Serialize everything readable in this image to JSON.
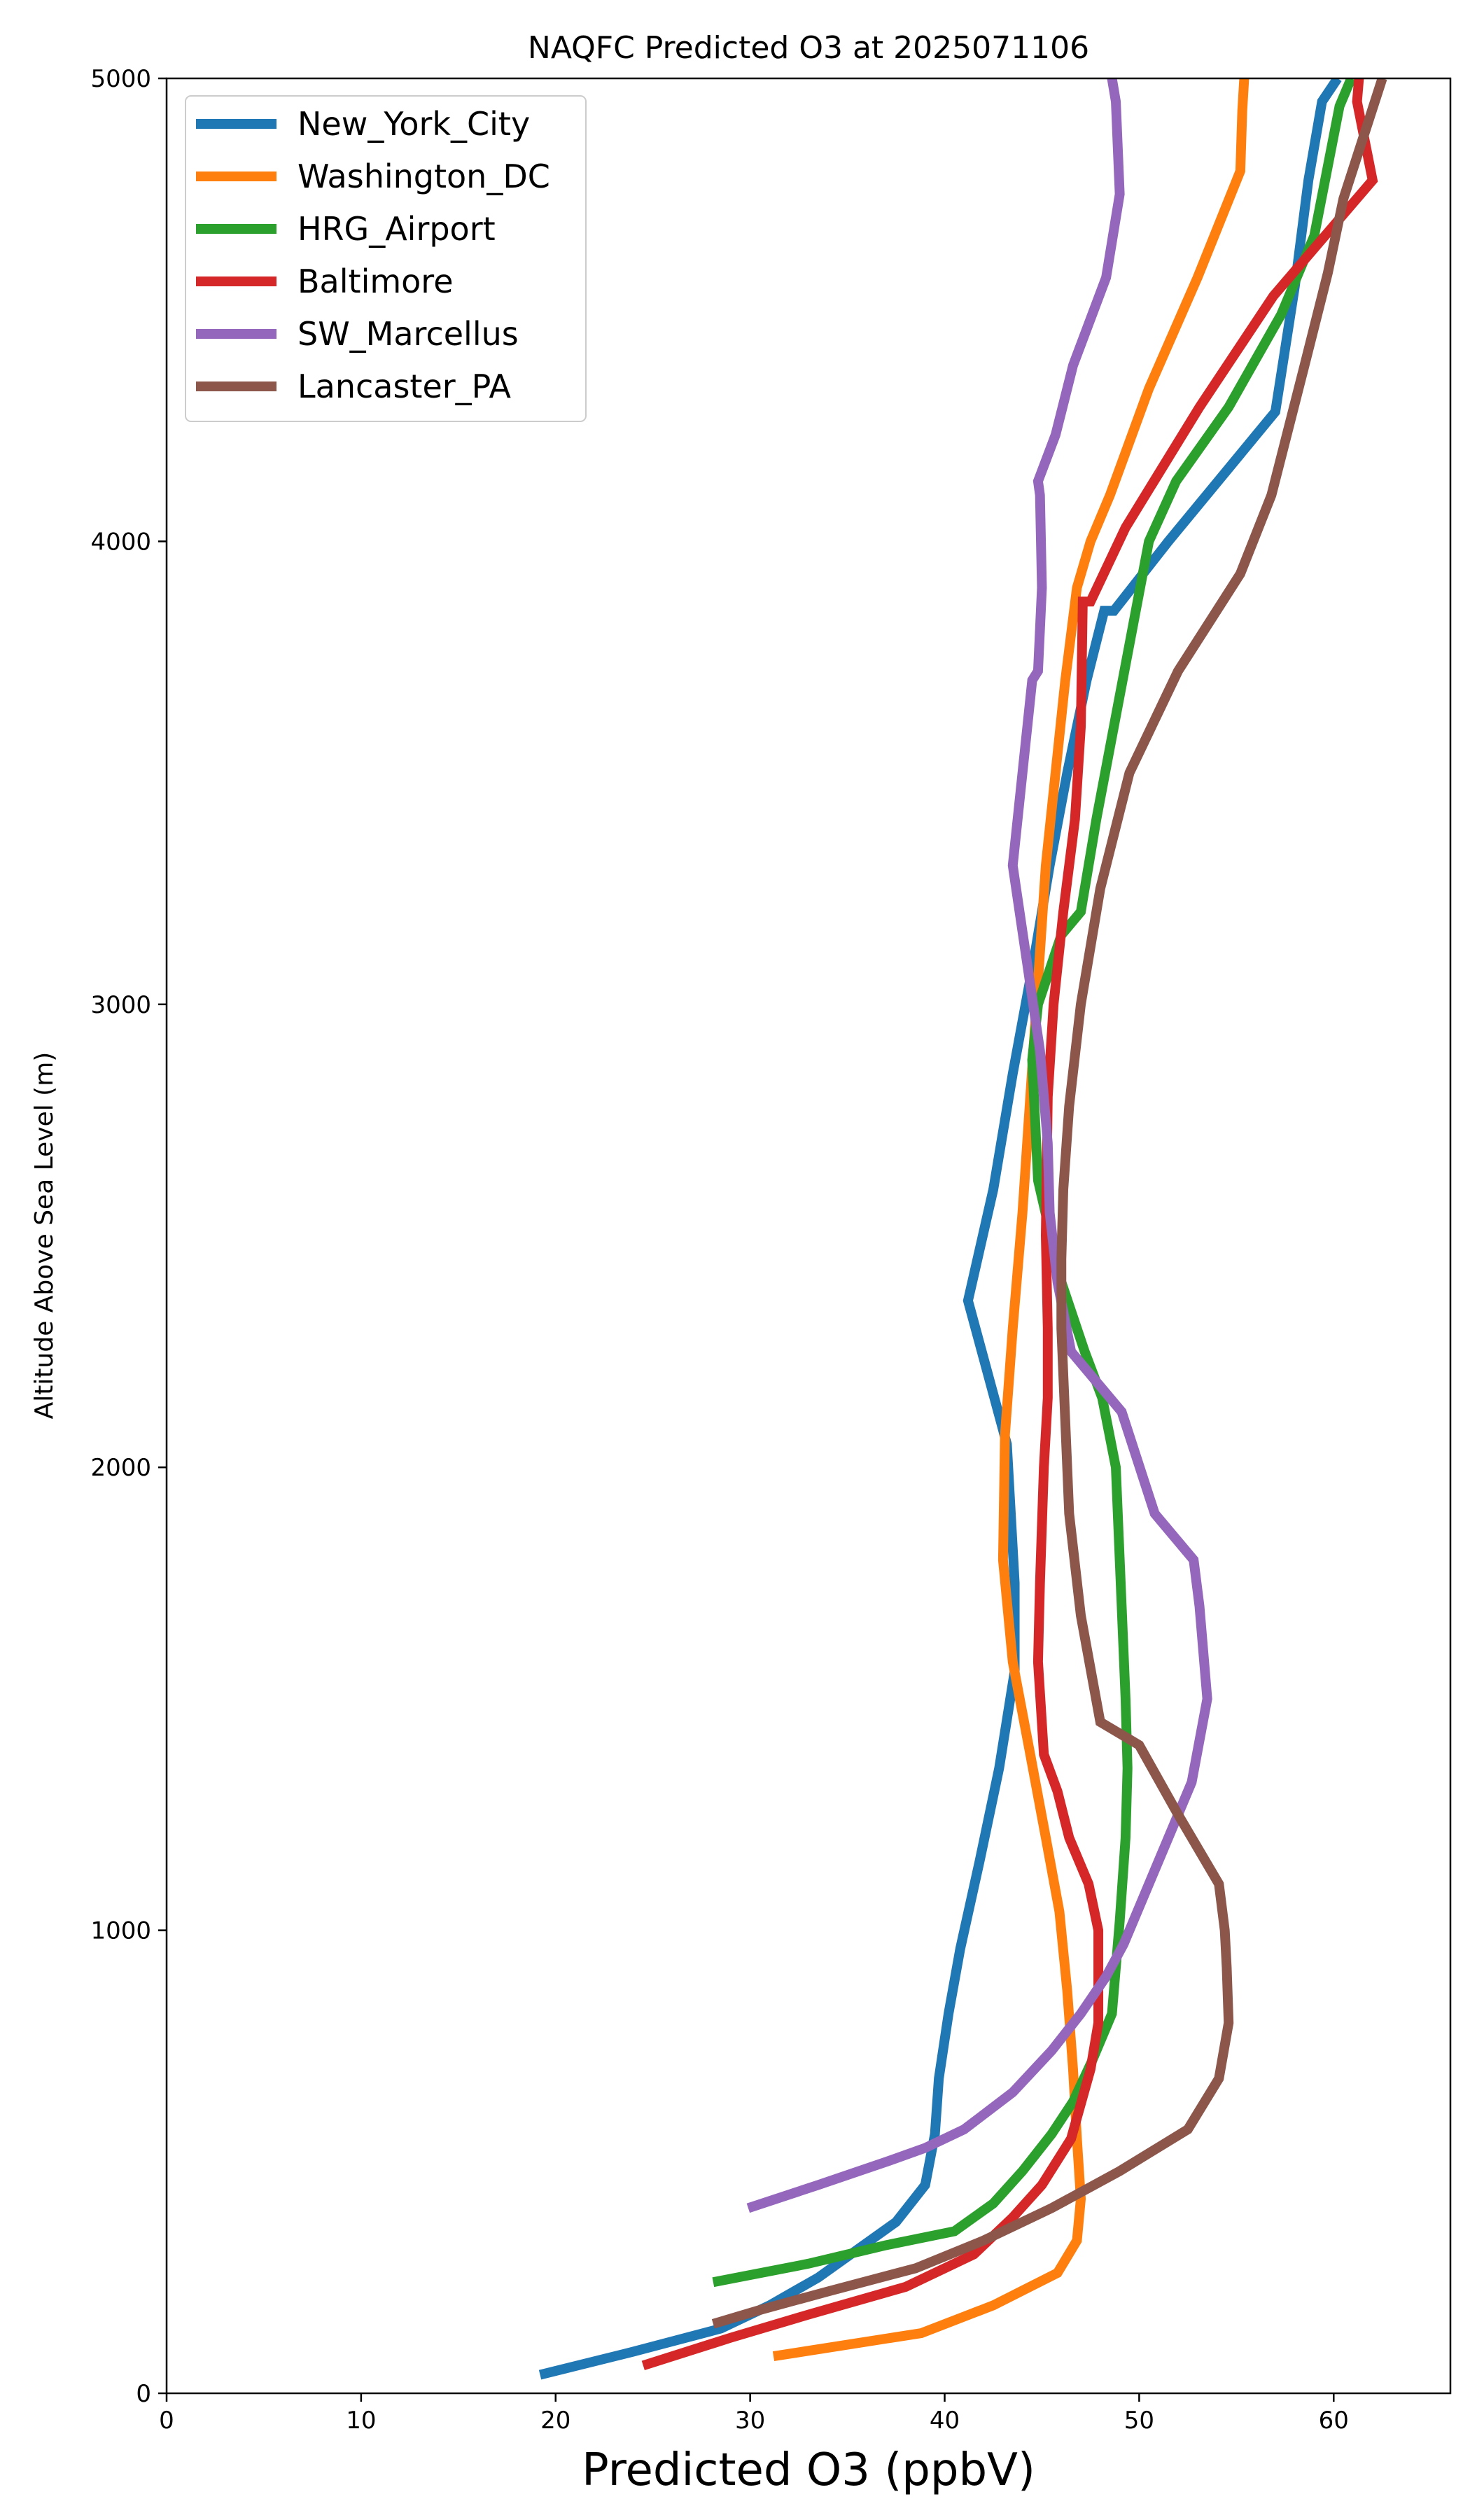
{
  "chart_data": {
    "type": "line",
    "title": "NAQFC Predicted O3 at 2025071106",
    "xlabel": "Predicted O3 (ppbV)",
    "ylabel": "Altitude Above Sea Level (m)",
    "xlim": [
      0,
      66
    ],
    "ylim": [
      0,
      5000
    ],
    "xticks": [
      0,
      10,
      20,
      30,
      40,
      50,
      60
    ],
    "yticks": [
      0,
      1000,
      2000,
      3000,
      4000,
      5000
    ],
    "grid": false,
    "legend_position": "top-left",
    "series": [
      {
        "name": "New_York_City",
        "color": "#1f77b4",
        "x": [
          19.2,
          24.0,
          28.5,
          31.0,
          33.5,
          35.5,
          37.5,
          39.0,
          39.5,
          39.7,
          40.2,
          40.8,
          41.8,
          42.8,
          43.6,
          43.6,
          43.2,
          41.2,
          42.5,
          43.5,
          44.6,
          45.4,
          46.3,
          47.3,
          48.2,
          48.7,
          51.5,
          57.0,
          58.0,
          58.7,
          59.4,
          60.2
        ],
        "y": [
          40,
          90,
          140,
          190,
          250,
          310,
          370,
          450,
          560,
          680,
          820,
          960,
          1150,
          1350,
          1560,
          1750,
          2050,
          2360,
          2600,
          2850,
          3100,
          3300,
          3500,
          3700,
          3850,
          3850,
          4000,
          4280,
          4550,
          4780,
          4950,
          5000
        ]
      },
      {
        "name": "Washington_DC",
        "color": "#ff7f0e",
        "x": [
          31.2,
          35.0,
          38.8,
          42.5,
          45.8,
          46.8,
          47.0,
          46.8,
          46.6,
          46.3,
          45.9,
          45.2,
          44.4,
          43.5,
          43.0,
          43.1,
          43.5,
          44.0,
          44.4,
          44.8,
          45.2,
          45.7,
          46.2,
          46.8,
          47.5,
          48.5,
          50.5,
          53.0,
          55.2,
          55.3,
          55.4
        ],
        "y": [
          80,
          105,
          130,
          190,
          260,
          330,
          420,
          550,
          700,
          870,
          1040,
          1200,
          1380,
          1580,
          1800,
          2070,
          2300,
          2550,
          2800,
          3050,
          3300,
          3500,
          3700,
          3900,
          4000,
          4100,
          4330,
          4570,
          4800,
          4930,
          5000
        ]
      },
      {
        "name": "HRG_Airport",
        "color": "#2ca02c",
        "x": [
          28.1,
          33.0,
          37.0,
          40.5,
          42.5,
          44.0,
          45.5,
          46.6,
          47.6,
          48.6,
          49.0,
          49.3,
          49.4,
          49.3,
          49.1,
          48.8,
          48.1,
          47.2,
          46.0,
          44.8,
          44.5,
          44.8,
          46.0,
          47.0,
          47.8,
          48.7,
          49.6,
          50.5,
          51.9,
          54.6,
          57.3,
          59.0,
          60.3,
          60.9
        ],
        "y": [
          240,
          280,
          320,
          350,
          410,
          480,
          560,
          630,
          720,
          820,
          1020,
          1200,
          1350,
          1500,
          1700,
          2000,
          2150,
          2250,
          2400,
          2620,
          2880,
          3000,
          3150,
          3200,
          3400,
          3600,
          3800,
          4000,
          4130,
          4290,
          4490,
          4660,
          4940,
          5000
        ]
      },
      {
        "name": "Baltimore",
        "color": "#d62728",
        "x": [
          24.5,
          29.0,
          33.0,
          38.0,
          41.5,
          43.5,
          45.0,
          46.5,
          47.5,
          47.9,
          47.9,
          47.4,
          46.4,
          45.8,
          45.1,
          44.8,
          44.9,
          45.1,
          45.3,
          45.3,
          45.2,
          45.3,
          45.6,
          46.1,
          46.7,
          47.0,
          47.1,
          47.5,
          49.3,
          53.1,
          56.9,
          62.0,
          61.2,
          61.3
        ],
        "y": [
          60,
          120,
          170,
          230,
          300,
          380,
          450,
          550,
          700,
          800,
          1000,
          1100,
          1200,
          1300,
          1380,
          1580,
          1750,
          2000,
          2150,
          2300,
          2500,
          2800,
          3000,
          3200,
          3400,
          3600,
          3870,
          3870,
          4030,
          4290,
          4530,
          4780,
          4950,
          5000
        ]
      },
      {
        "name": "SW_Marcellus",
        "color": "#9467bd",
        "x": [
          29.9,
          33.5,
          37.0,
          39.0,
          41.0,
          43.5,
          45.5,
          47.0,
          48.3,
          49.2,
          50.0,
          51.3,
          52.7,
          53.5,
          53.1,
          52.8,
          50.8,
          49.1,
          46.5,
          45.8,
          45.4,
          45.3,
          44.9,
          44.2,
          43.5,
          44.0,
          44.5,
          44.8,
          45.0,
          44.9,
          44.8,
          45.7,
          46.6,
          48.3,
          49.0,
          48.9,
          48.8,
          48.6,
          48.5
        ],
        "y": [
          400,
          450,
          500,
          530,
          570,
          650,
          740,
          820,
          900,
          970,
          1050,
          1180,
          1320,
          1500,
          1700,
          1800,
          1900,
          2120,
          2250,
          2400,
          2550,
          2700,
          2900,
          3100,
          3300,
          3500,
          3700,
          3720,
          3900,
          4100,
          4130,
          4230,
          4380,
          4570,
          4750,
          4850,
          4950,
          5000,
          5000
        ]
      },
      {
        "name": "Lancaster_PA",
        "color": "#8c564b",
        "x": [
          28.1,
          30.5,
          34.0,
          38.5,
          42.0,
          45.5,
          49.0,
          52.5,
          54.1,
          54.6,
          54.5,
          54.4,
          54.1,
          52.0,
          50.0,
          48.0,
          47.0,
          46.4,
          46.2,
          46.0,
          46.0,
          46.1,
          46.4,
          47.0,
          48.0,
          49.5,
          52.0,
          55.2,
          56.8,
          58.5,
          59.7,
          60.5,
          62.5
        ],
        "y": [
          150,
          180,
          220,
          270,
          330,
          400,
          480,
          570,
          680,
          800,
          920,
          1000,
          1100,
          1250,
          1400,
          1450,
          1680,
          1900,
          2100,
          2300,
          2450,
          2600,
          2780,
          3000,
          3250,
          3500,
          3720,
          3930,
          4100,
          4380,
          4580,
          4740,
          5000
        ]
      }
    ]
  }
}
